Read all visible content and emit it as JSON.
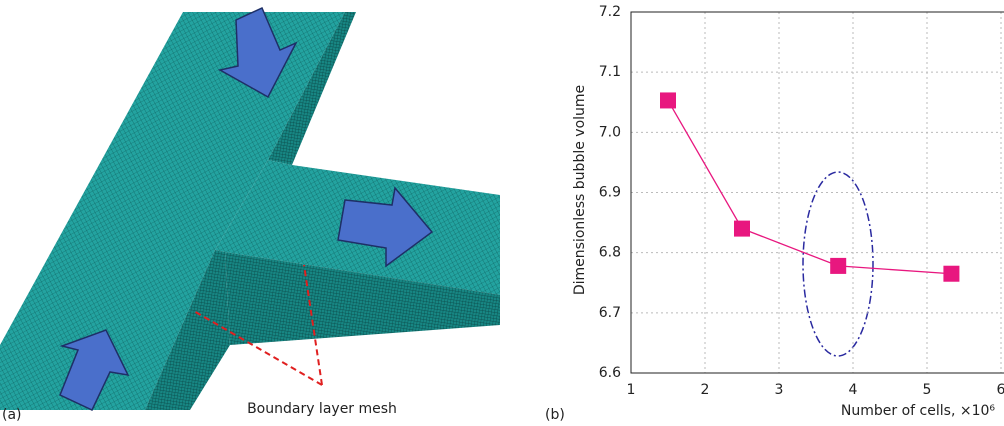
{
  "panel_a": {
    "label": "(a)",
    "annotation": "Boundary layer mesh"
  },
  "chart_data": {
    "type": "line",
    "panel_label": "(b)",
    "x_label": "Number of cells, ×10⁶",
    "y_label": "Dimensionless bubble volume",
    "x": [
      1.5,
      2.5,
      3.8,
      5.33
    ],
    "series": [
      {
        "color": "#e8177f",
        "values": [
          7.053,
          6.84,
          6.778,
          6.765
        ]
      }
    ],
    "xlim": [
      1,
      6
    ],
    "xticks": [
      1,
      2,
      3,
      4,
      5,
      6
    ],
    "ylim": [
      6.6,
      7.2
    ],
    "yticks": [
      6.6,
      6.7,
      6.8,
      6.9,
      {
        "value": 7,
        "label": "7.0"
      },
      7.1,
      7.2
    ],
    "grid": true
  }
}
